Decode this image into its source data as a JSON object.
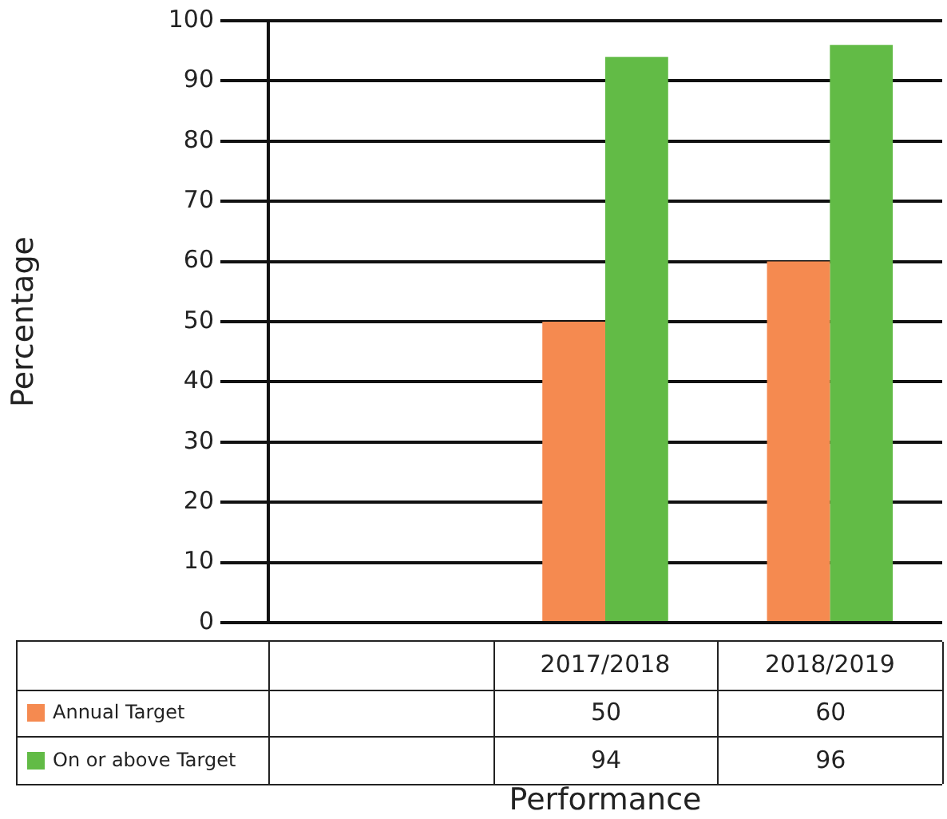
{
  "chart_data": {
    "type": "bar",
    "ylabel": "Percentage",
    "xlabel": "Performance",
    "categories": [
      null,
      "2017/2018",
      "2018/2019"
    ],
    "series": [
      {
        "name": "Annual Target",
        "color": "#f58a50",
        "values": [
          null,
          50,
          60
        ]
      },
      {
        "name": "On or above Target",
        "color": "#62bb46",
        "values": [
          null,
          94,
          96
        ]
      }
    ],
    "ylim": [
      0,
      100
    ],
    "yticks": [
      0,
      10,
      20,
      30,
      40,
      50,
      60,
      70,
      80,
      90,
      100
    ],
    "grid": "y",
    "legend": "bottom left",
    "data_labels": true
  }
}
